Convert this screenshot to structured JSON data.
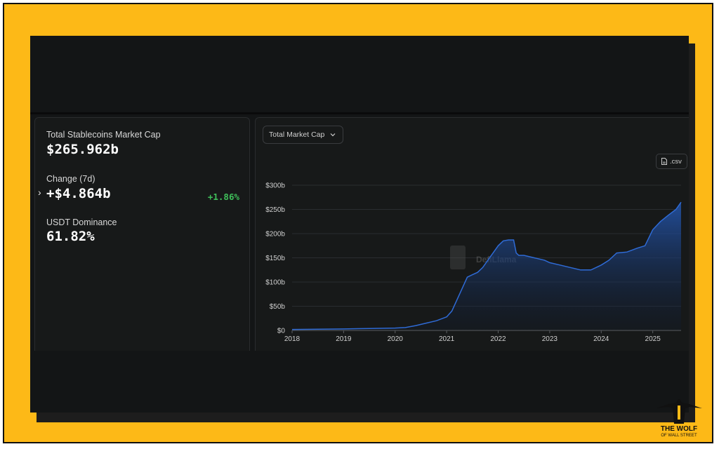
{
  "stats": {
    "market_cap_label": "Total Stablecoins Market Cap",
    "market_cap_value": "$265.962b",
    "change_label": "Change (7d)",
    "change_value": "+$4.864b",
    "change_pct": "+1.86%",
    "dominance_label": "USDT Dominance",
    "dominance_value": "61.82%"
  },
  "controls": {
    "dropdown_label": "Total Market Cap",
    "csv_label": ".csv"
  },
  "watermark": "DefiLlama",
  "brand": {
    "line1": "THE WOLF",
    "line2": "OF WALL STREET"
  },
  "colors": {
    "positive": "#3fbf5a",
    "series": "#2f6bd6",
    "frame": "#fdb917"
  },
  "chart_data": {
    "type": "area",
    "title": "",
    "xlabel": "",
    "ylabel": "",
    "x_ticks": [
      "2018",
      "2019",
      "2020",
      "2021",
      "2022",
      "2023",
      "2024",
      "2025"
    ],
    "y_ticks": [
      "$0",
      "$50b",
      "$100b",
      "$150b",
      "$200b",
      "$250b",
      "$300b"
    ],
    "xlim": [
      2018.0,
      2025.55
    ],
    "ylim": [
      0,
      300
    ],
    "grid": true,
    "legend": "none",
    "series": [
      {
        "x": [
          2018.0,
          2018.5,
          2019.0,
          2019.5,
          2020.0,
          2020.2,
          2020.4,
          2020.6,
          2020.8,
          2021.0,
          2021.1,
          2021.25,
          2021.4,
          2021.5,
          2021.6,
          2021.7,
          2021.8,
          2021.9,
          2022.0,
          2022.1,
          2022.2,
          2022.3,
          2022.35,
          2022.4,
          2022.5,
          2022.7,
          2022.9,
          2023.0,
          2023.2,
          2023.4,
          2023.6,
          2023.8,
          2024.0,
          2024.15,
          2024.3,
          2024.5,
          2024.7,
          2024.85,
          2025.0,
          2025.15,
          2025.3,
          2025.45,
          2025.55
        ],
        "values": [
          2,
          2.5,
          3,
          4,
          5,
          6,
          10,
          15,
          20,
          28,
          40,
          75,
          110,
          115,
          120,
          130,
          145,
          160,
          175,
          185,
          187,
          187,
          160,
          155,
          155,
          150,
          145,
          140,
          135,
          130,
          125,
          125,
          135,
          145,
          160,
          162,
          170,
          175,
          208,
          225,
          238,
          250,
          265
        ]
      }
    ]
  }
}
